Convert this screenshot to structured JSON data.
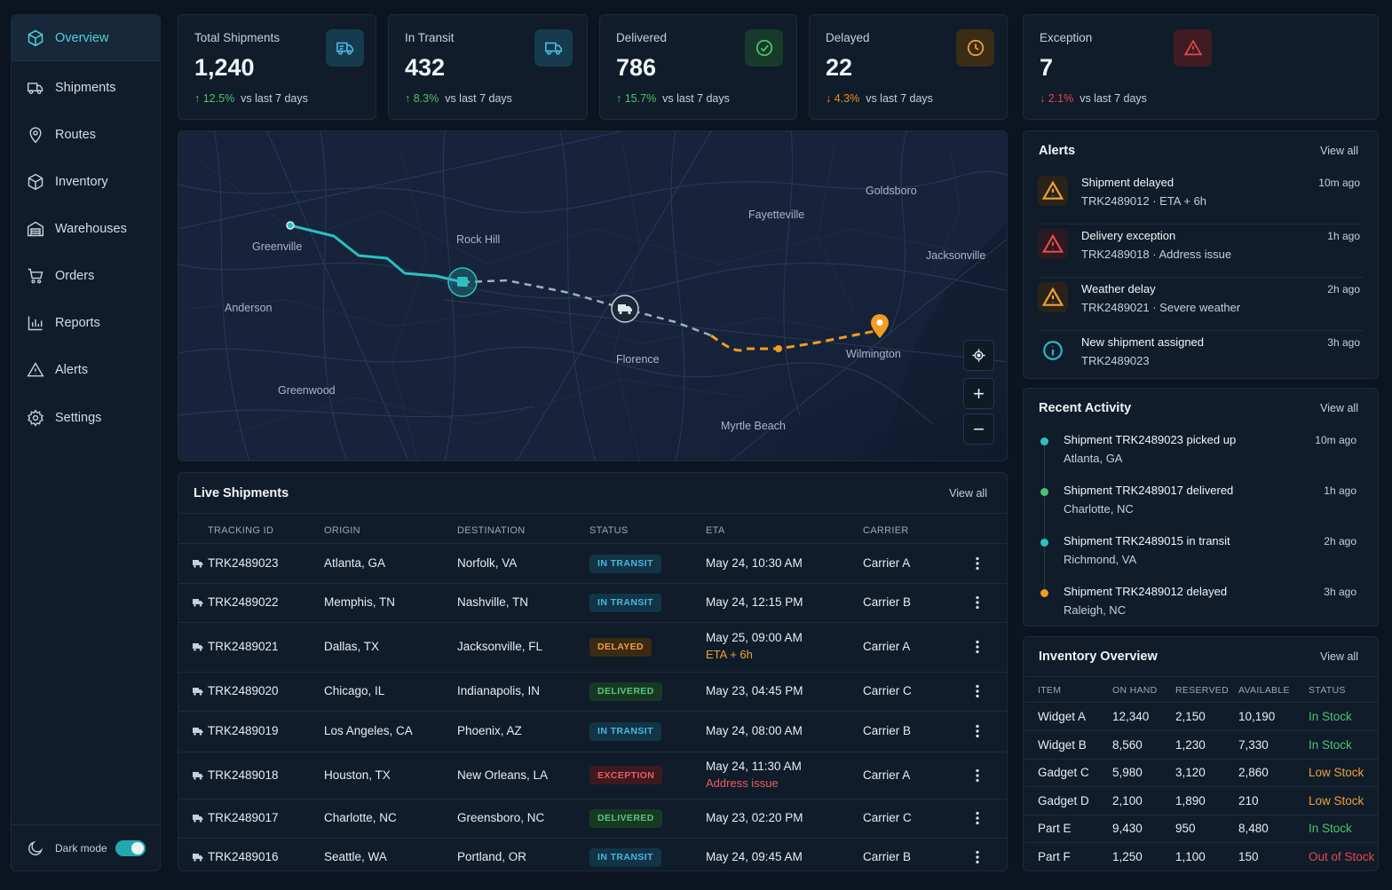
{
  "sidebar": {
    "items": [
      {
        "label": "Overview",
        "icon": "cube-icon"
      },
      {
        "label": "Shipments",
        "icon": "truck-icon"
      },
      {
        "label": "Routes",
        "icon": "map-pin-icon"
      },
      {
        "label": "Inventory",
        "icon": "box-icon"
      },
      {
        "label": "Warehouses",
        "icon": "warehouse-icon"
      },
      {
        "label": "Orders",
        "icon": "cart-icon"
      },
      {
        "label": "Reports",
        "icon": "bar-chart-icon"
      },
      {
        "label": "Alerts",
        "icon": "warning-icon"
      },
      {
        "label": "Settings",
        "icon": "gear-icon"
      }
    ],
    "dark_mode_label": "Dark mode"
  },
  "kpis": [
    {
      "label": "Total Shipments",
      "value": "1,240",
      "delta": "12.5%",
      "delta_suffix": "vs last 7 days",
      "trend": "up",
      "icon": "truck-icon",
      "color": "#49b7df"
    },
    {
      "label": "In Transit",
      "value": "432",
      "delta": "8.3%",
      "delta_suffix": "vs last 7 days",
      "trend": "up",
      "icon": "truck-icon",
      "color": "#49b7df"
    },
    {
      "label": "Delivered",
      "value": "786",
      "delta": "15.7%",
      "delta_suffix": "vs last 7 days",
      "trend": "up",
      "icon": "check-circle-icon",
      "color": "#4cc36e"
    },
    {
      "label": "Delayed",
      "value": "22",
      "delta": "4.3%",
      "delta_suffix": "vs last 7 days",
      "trend": "down",
      "icon": "clock-icon",
      "color": "#f0a13a"
    },
    {
      "label": "Exception",
      "value": "7",
      "delta": "2.1%",
      "delta_suffix": "vs last 7 days",
      "trend": "down",
      "icon": "warning-icon",
      "color": "#e5484d"
    }
  ],
  "map": {
    "cities": [
      "Goldsboro",
      "Fayetteville",
      "Greenville",
      "Rock Hill",
      "Jacksonville",
      "Anderson",
      "Florence",
      "Wilmington",
      "Greenwood",
      "Myrtle Beach"
    ],
    "controls": [
      "locate-button",
      "zoom-in-button",
      "zoom-out-button"
    ],
    "route_colors": {
      "completed": "#2cc0c0",
      "remaining": "#9fb0c0",
      "delayed": "#f39c1f"
    }
  },
  "live_shipments": {
    "title": "Live Shipments",
    "view_all": "View all",
    "columns": [
      "TRACKING ID",
      "ORIGIN",
      "DESTINATION",
      "STATUS",
      "ETA",
      "CARRIER"
    ],
    "rows": [
      {
        "id": "TRK2489023",
        "origin": "Atlanta, GA",
        "destination": "Norfolk, VA",
        "status": "IN TRANSIT",
        "status_kind": "transit",
        "eta": "May 24, 10:30 AM",
        "eta_note": "",
        "carrier": "Carrier A"
      },
      {
        "id": "TRK2489022",
        "origin": "Memphis, TN",
        "destination": "Nashville, TN",
        "status": "IN TRANSIT",
        "status_kind": "transit",
        "eta": "May 24, 12:15 PM",
        "eta_note": "",
        "carrier": "Carrier B"
      },
      {
        "id": "TRK2489021",
        "origin": "Dallas, TX",
        "destination": "Jacksonville, FL",
        "status": "DELAYED",
        "status_kind": "delayed",
        "eta": "May 25, 09:00 AM",
        "eta_note": "ETA + 6h",
        "carrier": "Carrier A"
      },
      {
        "id": "TRK2489020",
        "origin": "Chicago, IL",
        "destination": "Indianapolis, IN",
        "status": "DELIVERED",
        "status_kind": "delivered",
        "eta": "May 23, 04:45 PM",
        "eta_note": "",
        "carrier": "Carrier C"
      },
      {
        "id": "TRK2489019",
        "origin": "Los Angeles, CA",
        "destination": "Phoenix, AZ",
        "status": "IN TRANSIT",
        "status_kind": "transit",
        "eta": "May 24, 08:00 AM",
        "eta_note": "",
        "carrier": "Carrier B"
      },
      {
        "id": "TRK2489018",
        "origin": "Houston, TX",
        "destination": "New Orleans, LA",
        "status": "EXCEPTION",
        "status_kind": "exception",
        "eta": "May 24, 11:30 AM",
        "eta_note": "Address issue",
        "carrier": "Carrier A"
      },
      {
        "id": "TRK2489017",
        "origin": "Charlotte, NC",
        "destination": "Greensboro, NC",
        "status": "DELIVERED",
        "status_kind": "delivered",
        "eta": "May 23, 02:20 PM",
        "eta_note": "",
        "carrier": "Carrier C"
      },
      {
        "id": "TRK2489016",
        "origin": "Seattle, WA",
        "destination": "Portland, OR",
        "status": "IN TRANSIT",
        "status_kind": "transit",
        "eta": "May 24, 09:45 AM",
        "eta_note": "",
        "carrier": "Carrier B"
      }
    ]
  },
  "alerts": {
    "title": "Alerts",
    "view_all": "View all",
    "items": [
      {
        "title": "Shipment delayed",
        "sub": "TRK2489012 · ETA + 6h",
        "time": "10m ago",
        "kind": "warning",
        "color": "#f0a13a"
      },
      {
        "title": "Delivery exception",
        "sub": "TRK2489018 · Address issue",
        "time": "1h ago",
        "kind": "error",
        "color": "#e5484d"
      },
      {
        "title": "Weather delay",
        "sub": "TRK2489021 · Severe weather",
        "time": "2h ago",
        "kind": "warning",
        "color": "#f0a13a"
      },
      {
        "title": "New shipment assigned",
        "sub": "TRK2489023",
        "time": "3h ago",
        "kind": "info",
        "color": "#2cb8c9"
      }
    ]
  },
  "activity": {
    "title": "Recent Activity",
    "view_all": "View all",
    "items": [
      {
        "title": "Shipment TRK2489023 picked up",
        "sub": "Atlanta, GA",
        "time": "10m ago",
        "color": "#2cc0c0"
      },
      {
        "title": "Shipment TRK2489017 delivered",
        "sub": "Charlotte, NC",
        "time": "1h ago",
        "color": "#4cc36e"
      },
      {
        "title": "Shipment TRK2489015 in transit",
        "sub": "Richmond, VA",
        "time": "2h ago",
        "color": "#2cc0c0"
      },
      {
        "title": "Shipment TRK2489012 delayed",
        "sub": "Raleigh, NC",
        "time": "3h ago",
        "color": "#f39c1f"
      }
    ]
  },
  "inventory": {
    "title": "Inventory Overview",
    "view_all": "View all",
    "columns": [
      "ITEM",
      "ON HAND",
      "RESERVED",
      "AVAILABLE",
      "STATUS"
    ],
    "rows": [
      {
        "item": "Widget A",
        "on_hand": "12,340",
        "reserved": "2,150",
        "available": "10,190",
        "status": "In Stock",
        "color": "#4cc36e"
      },
      {
        "item": "Widget B",
        "on_hand": "8,560",
        "reserved": "1,230",
        "available": "7,330",
        "status": "In Stock",
        "color": "#4cc36e"
      },
      {
        "item": "Gadget C",
        "on_hand": "5,980",
        "reserved": "3,120",
        "available": "2,860",
        "status": "Low Stock",
        "color": "#f0a13a"
      },
      {
        "item": "Gadget D",
        "on_hand": "2,100",
        "reserved": "1,890",
        "available": "210",
        "status": "Low Stock",
        "color": "#f0a13a"
      },
      {
        "item": "Part E",
        "on_hand": "9,430",
        "reserved": "950",
        "available": "8,480",
        "status": "In Stock",
        "color": "#4cc36e"
      },
      {
        "item": "Part F",
        "on_hand": "1,250",
        "reserved": "1,100",
        "available": "150",
        "status": "Out of Stock",
        "color": "#e5484d"
      }
    ]
  }
}
